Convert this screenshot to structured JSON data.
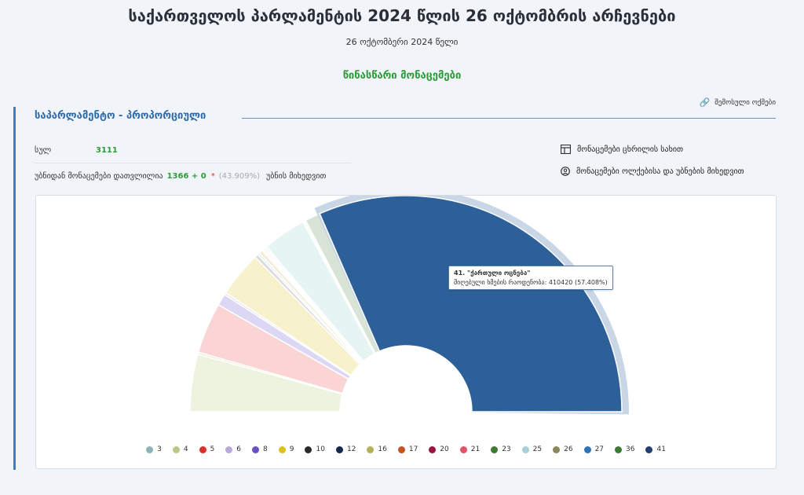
{
  "header": {
    "title": "საქართველოს პარლამენტის 2024 წლის 26 ოქტომბრის არჩევნები",
    "date": "26 ოქტომბერი 2024 წელი",
    "status": "წინასწარი მონაცემები"
  },
  "share": {
    "label": "შემოსული ოქმები"
  },
  "section": {
    "title": "საპარლამენტო - პროპორციული"
  },
  "stats": {
    "total_label": "სულ",
    "total_value": "3111",
    "counted_label": "უბნიდან მონაცემები დათვლილია",
    "counted_value": "1366 + 0",
    "asterisk": "*",
    "percent": "(43.909%)",
    "counted_suffix": "უბნის მიხედვით"
  },
  "views": {
    "table_label": "მონაცემები ცხრილის სახით",
    "map_label": "მონაცემები ოლქებისა და უბნების მიხედვით"
  },
  "tooltip": {
    "line1": "41. \"ქართული ოცნება\"",
    "line2_label": "მიღებული ხმების რაოდენობა:",
    "line2_value": "410420 (57.408%)"
  },
  "chart_data": {
    "type": "pie",
    "subtype": "semi-donut",
    "highlighted": "41",
    "slices": [
      {
        "label": "3",
        "value": 7.8,
        "color": "#eef3e0"
      },
      {
        "label": "4",
        "value": 0.3,
        "color": "#e9eed0"
      },
      {
        "label": "5",
        "value": 6.9,
        "color": "#fbd5d5"
      },
      {
        "label": "6",
        "value": 1.6,
        "color": "#dcd8f4"
      },
      {
        "label": "8",
        "value": 0.3,
        "color": "#e4e2f6"
      },
      {
        "label": "9",
        "value": 6.2,
        "color": "#f7f2cc"
      },
      {
        "label": "10",
        "value": 0.5,
        "color": "#d7dcdc"
      },
      {
        "label": "12",
        "value": 0.3,
        "color": "#e6e9ee"
      },
      {
        "label": "16",
        "value": 0.5,
        "color": "#f1eed9"
      },
      {
        "label": "17",
        "value": 0.2,
        "color": "#f7e0d4"
      },
      {
        "label": "20",
        "value": 0.2,
        "color": "#f5dbe2"
      },
      {
        "label": "21",
        "value": 0.2,
        "color": "#fce0e4"
      },
      {
        "label": "23",
        "value": 0.2,
        "color": "#dfe9dd"
      },
      {
        "label": "25",
        "value": 5.9,
        "color": "#e7f4f4"
      },
      {
        "label": "26",
        "value": 0.2,
        "color": "#ecebe0"
      },
      {
        "label": "27",
        "value": 0.2,
        "color": "#dfe8f4"
      },
      {
        "label": "36",
        "value": 2.1,
        "color": "#d8e4d6"
      },
      {
        "label": "41",
        "value": 57.408,
        "color": "#2d6099"
      }
    ],
    "legend": [
      {
        "label": "3",
        "color": "#8db3b5"
      },
      {
        "label": "4",
        "color": "#b9c98b"
      },
      {
        "label": "5",
        "color": "#d9302c"
      },
      {
        "label": "6",
        "color": "#b7a9d9"
      },
      {
        "label": "8",
        "color": "#6a4fc9"
      },
      {
        "label": "9",
        "color": "#dcc21c"
      },
      {
        "label": "10",
        "color": "#2a2a2a"
      },
      {
        "label": "12",
        "color": "#16284e"
      },
      {
        "label": "16",
        "color": "#b5b05a"
      },
      {
        "label": "17",
        "color": "#c2531f"
      },
      {
        "label": "20",
        "color": "#96153e"
      },
      {
        "label": "21",
        "color": "#e2536a"
      },
      {
        "label": "23",
        "color": "#3e7a34"
      },
      {
        "label": "25",
        "color": "#a7cfd6"
      },
      {
        "label": "26",
        "color": "#8a865e"
      },
      {
        "label": "27",
        "color": "#2e72b8"
      },
      {
        "label": "36",
        "color": "#3b7a35"
      },
      {
        "label": "41",
        "color": "#21406e"
      }
    ]
  }
}
